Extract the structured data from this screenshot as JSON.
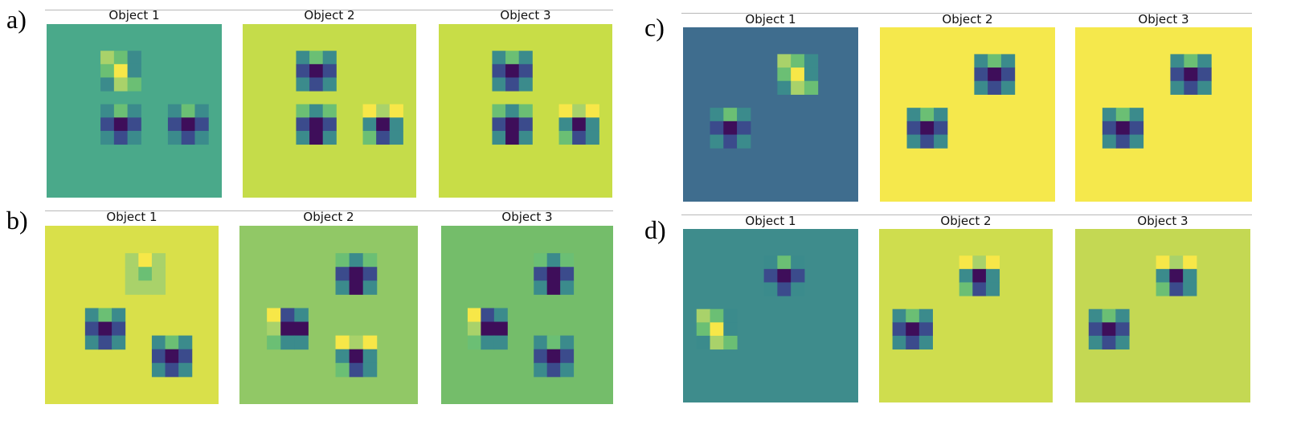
{
  "panels": [
    {
      "letter": "a)",
      "objects": [
        {
          "title": "Object 1",
          "background": "#4aa98a",
          "blobs": [
            {
              "r": 2,
              "c": 4,
              "pattern": "vbar"
            },
            {
              "r": 6,
              "c": 4,
              "pattern": "dark3"
            },
            {
              "r": 6,
              "c": 9,
              "pattern": "dark3"
            }
          ]
        },
        {
          "title": "Object 2",
          "background": "#c5dc4a",
          "blobs": [
            {
              "r": 2,
              "c": 4,
              "pattern": "dark3"
            },
            {
              "r": 6,
              "c": 4,
              "pattern": "vdark"
            },
            {
              "r": 6,
              "c": 9,
              "pattern": "darkyellow"
            }
          ]
        },
        {
          "title": "Object 3",
          "background": "#c8dd47",
          "blobs": [
            {
              "r": 2,
              "c": 4,
              "pattern": "dark3"
            },
            {
              "r": 6,
              "c": 4,
              "pattern": "vdark"
            },
            {
              "r": 6,
              "c": 9,
              "pattern": "darkyellow"
            }
          ]
        }
      ]
    },
    {
      "letter": "b)",
      "objects": [
        {
          "title": "Object 1",
          "background": "#d9e04a",
          "blobs": [
            {
              "r": 2,
              "c": 6,
              "pattern": "yellowtop"
            },
            {
              "r": 6,
              "c": 3,
              "pattern": "dark3"
            },
            {
              "r": 8,
              "c": 8,
              "pattern": "dark3"
            }
          ]
        },
        {
          "title": "Object 2",
          "background": "#91c866",
          "blobs": [
            {
              "r": 2,
              "c": 7,
              "pattern": "vdark"
            },
            {
              "r": 6,
              "c": 2,
              "pattern": "yellowleft"
            },
            {
              "r": 8,
              "c": 7,
              "pattern": "darkyellow"
            }
          ]
        },
        {
          "title": "Object 3",
          "background": "#74bd6a",
          "blobs": [
            {
              "r": 2,
              "c": 7,
              "pattern": "vdark"
            },
            {
              "r": 6,
              "c": 2,
              "pattern": "yellowleft"
            },
            {
              "r": 8,
              "c": 7,
              "pattern": "dark3"
            }
          ]
        }
      ]
    },
    {
      "letter": "c)",
      "objects": [
        {
          "title": "Object 1",
          "background": "#3f6d8e",
          "blobs": [
            {
              "r": 2,
              "c": 7,
              "pattern": "vbar"
            },
            {
              "r": 6,
              "c": 2,
              "pattern": "dark3"
            }
          ]
        },
        {
          "title": "Object 2",
          "background": "#f5e84c",
          "blobs": [
            {
              "r": 2,
              "c": 7,
              "pattern": "dark3"
            },
            {
              "r": 6,
              "c": 2,
              "pattern": "dark3"
            }
          ]
        },
        {
          "title": "Object 3",
          "background": "#f5e84c",
          "blobs": [
            {
              "r": 2,
              "c": 7,
              "pattern": "dark3"
            },
            {
              "r": 6,
              "c": 2,
              "pattern": "dark3"
            }
          ]
        }
      ]
    },
    {
      "letter": "d)",
      "objects": [
        {
          "title": "Object 1",
          "background": "#3e8c8c",
          "blobs": [
            {
              "r": 2,
              "c": 6,
              "pattern": "dark3"
            },
            {
              "r": 6,
              "c": 1,
              "pattern": "vbar"
            }
          ]
        },
        {
          "title": "Object 2",
          "background": "#cfdd4e",
          "blobs": [
            {
              "r": 2,
              "c": 6,
              "pattern": "darkyellow"
            },
            {
              "r": 6,
              "c": 1,
              "pattern": "dark3"
            }
          ]
        },
        {
          "title": "Object 3",
          "background": "#c4d853",
          "blobs": [
            {
              "r": 2,
              "c": 6,
              "pattern": "darkyellow"
            },
            {
              "r": 6,
              "c": 1,
              "pattern": "dark3"
            }
          ]
        }
      ]
    }
  ],
  "colors": {
    "dark": "#3e0e5a",
    "darkblue": "#3b4b8c",
    "teal": "#3b8b8c",
    "green": "#6bbf74",
    "lightgreen": "#a9d26a",
    "yellow": "#f7e748"
  }
}
